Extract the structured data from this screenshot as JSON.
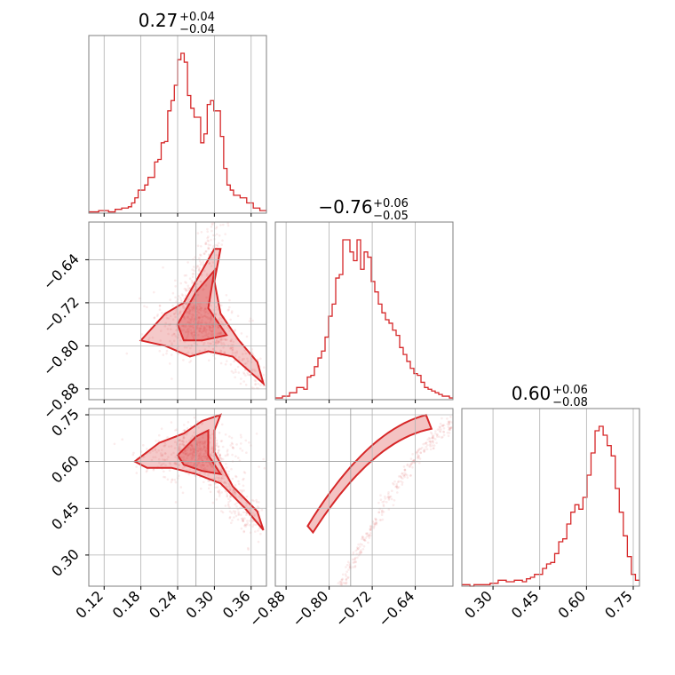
{
  "color": "#d62728",
  "chart_data": {
    "type": "corner",
    "parameters": [
      {
        "title_value": "0.27",
        "title_plus": "+0.04",
        "title_minus": "−0.04",
        "median": 0.27,
        "err_plus": 0.04,
        "err_minus": 0.04,
        "range": [
          0.095,
          0.385
        ],
        "ticks": [
          0.12,
          0.18,
          0.24,
          0.3,
          0.36
        ],
        "tick_labels": [
          "0.12",
          "0.18",
          "0.24",
          "0.30",
          "0.36"
        ]
      },
      {
        "title_value": "−0.76",
        "title_plus": "+0.06",
        "title_minus": "−0.05",
        "median": -0.76,
        "err_plus": 0.06,
        "err_minus": 0.05,
        "range": [
          -0.9,
          -0.57
        ],
        "ticks": [
          -0.88,
          -0.8,
          -0.72,
          -0.64
        ],
        "tick_labels": [
          "−0.88",
          "−0.80",
          "−0.72",
          "−0.64"
        ]
      },
      {
        "title_value": "0.60",
        "title_plus": "+0.06",
        "title_minus": "−0.08",
        "median": 0.6,
        "err_plus": 0.06,
        "err_minus": 0.08,
        "range": [
          0.2,
          0.77
        ],
        "ticks": [
          0.3,
          0.45,
          0.6,
          0.75
        ],
        "tick_labels": [
          "0.30",
          "0.45",
          "0.60",
          "0.75"
        ]
      }
    ],
    "histograms": [
      {
        "param": 0,
        "counts": [
          1,
          1,
          1,
          2,
          2,
          2,
          1,
          1,
          3,
          3,
          4,
          4,
          5,
          8,
          12,
          18,
          18,
          22,
          28,
          28,
          40,
          42,
          55,
          56,
          80,
          88,
          100,
          120,
          125,
          118,
          92,
          82,
          75,
          75,
          55,
          62,
          85,
          88,
          80,
          80,
          60,
          35,
          22,
          18,
          14,
          14,
          12,
          12,
          8,
          8,
          4,
          4,
          2,
          2
        ]
      },
      {
        "param": 1,
        "counts": [
          1,
          1,
          2,
          2,
          4,
          4,
          7,
          7,
          6,
          13,
          14,
          19,
          24,
          28,
          36,
          48,
          55,
          70,
          72,
          92,
          92,
          85,
          80,
          92,
          75,
          85,
          82,
          68,
          62,
          55,
          50,
          46,
          44,
          40,
          37,
          30,
          26,
          22,
          18,
          15,
          14,
          10,
          7,
          6,
          5,
          4,
          3,
          2,
          2,
          1
        ]
      },
      {
        "param": 2,
        "counts": [
          1,
          1,
          0,
          1,
          1,
          1,
          1,
          2,
          2,
          4,
          4,
          3,
          3,
          4,
          4,
          3,
          5,
          6,
          8,
          8,
          12,
          15,
          16,
          22,
          30,
          32,
          42,
          50,
          55,
          52,
          60,
          75,
          90,
          105,
          108,
          102,
          95,
          88,
          66,
          50,
          34,
          20,
          8,
          4
        ]
      }
    ],
    "grid": true,
    "filled_contours": true
  }
}
